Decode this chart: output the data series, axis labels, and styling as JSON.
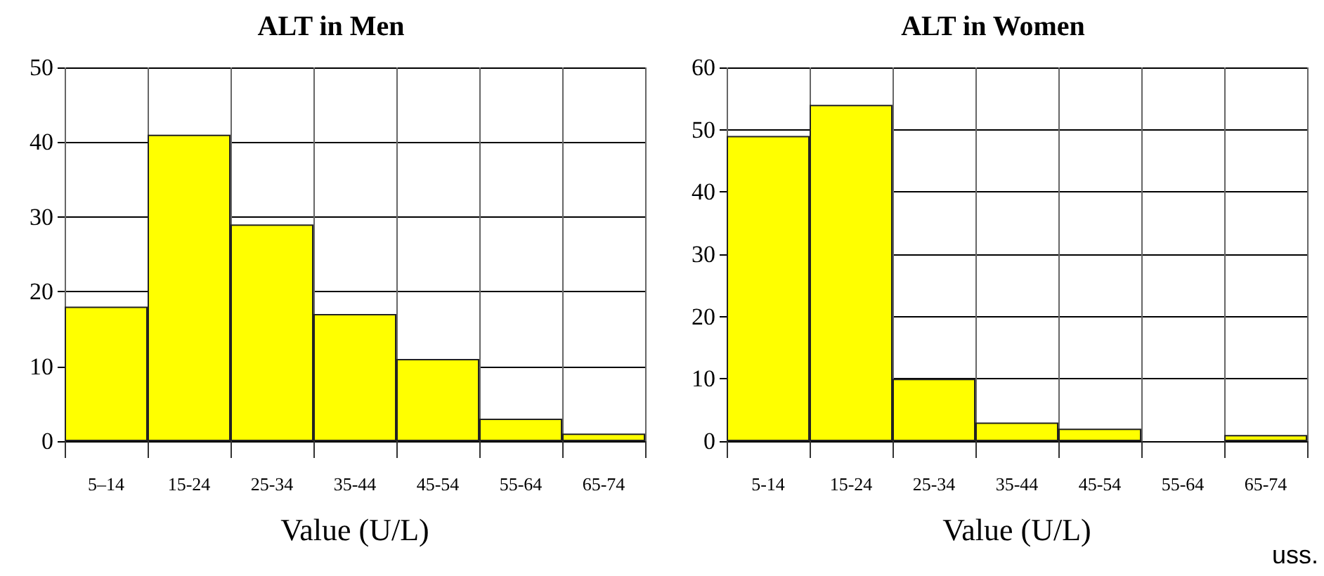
{
  "chart_data": [
    {
      "type": "bar",
      "title": "ALT in Men",
      "xlabel": "Value (U/L)",
      "categories": [
        "5–14",
        "15-24",
        "25-34",
        "35-44",
        "45-54",
        "55-64",
        "65-74"
      ],
      "values": [
        18,
        41,
        29,
        17,
        11,
        3,
        1
      ],
      "color": "#ffff00",
      "ylim": [
        0,
        50
      ],
      "yticks": [
        0,
        10,
        20,
        30,
        40,
        50
      ],
      "grid": true
    },
    {
      "type": "bar",
      "title": "ALT in Women",
      "xlabel": "Value (U/L)",
      "categories": [
        "5-14",
        "15-24",
        "25-34",
        "35-44",
        "45-54",
        "55-64",
        "65-74"
      ],
      "values": [
        49,
        54,
        10,
        3,
        2,
        0,
        1
      ],
      "color": "#ffff00",
      "ylim": [
        0,
        60
      ],
      "yticks": [
        0,
        10,
        20,
        30,
        40,
        50,
        60
      ],
      "grid": true,
      "annotations": [
        "uss."
      ]
    }
  ]
}
